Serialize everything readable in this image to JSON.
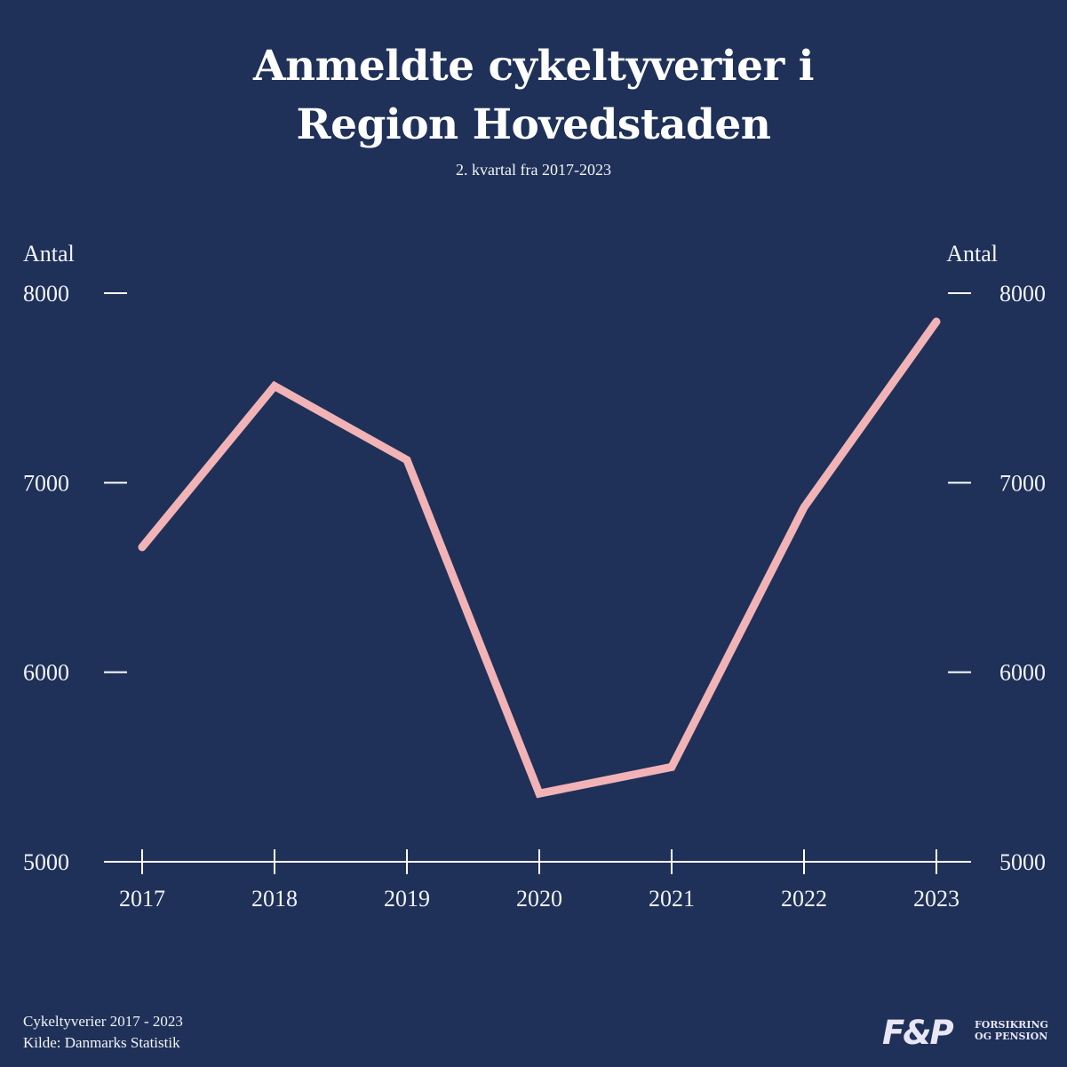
{
  "title_line1": "Anmeldte cykeltyverier i",
  "title_line2": "Region Hovedstaden",
  "subtitle": "2. kvartal fra 2017-2023",
  "footer": {
    "line1": "Cykeltyverier 2017 - 2023",
    "line2": "Kilde: Danmarks Statistik"
  },
  "logo": {
    "mark": "F&P",
    "line1": "FORSIKRING",
    "line2": "OG PENSION"
  },
  "colors": {
    "background": "#1f3158",
    "line": "#f2b3b7",
    "axis": "#ffffff"
  },
  "chart_data": {
    "type": "line",
    "title": "Anmeldte cykeltyverier i Region Hovedstaden",
    "subtitle": "2. kvartal fra 2017-2023",
    "ylabel_left": "Antal",
    "ylabel_right": "Antal",
    "x": [
      "2017",
      "2018",
      "2019",
      "2020",
      "2021",
      "2022",
      "2023"
    ],
    "series": [
      {
        "values": [
          6660,
          7510,
          7120,
          5360,
          5500,
          6870,
          7850
        ]
      }
    ],
    "yticks": [
      5000,
      6000,
      7000,
      8000
    ],
    "ylim": [
      5000,
      8000
    ],
    "grid": false,
    "legend": "none"
  }
}
